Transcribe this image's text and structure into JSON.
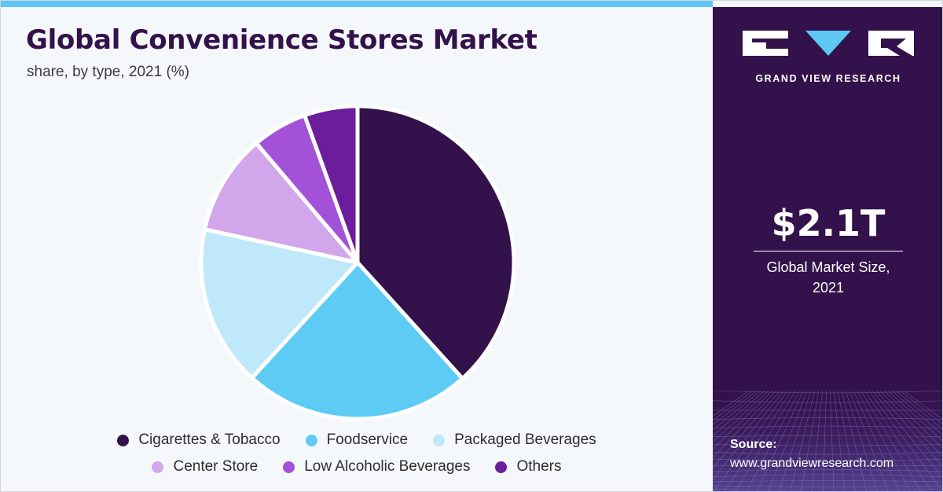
{
  "chart_data": {
    "type": "pie",
    "title": "Global Convenience Stores Market",
    "subtitle": "share, by type, 2021 (%)",
    "categories": [
      "Cigarettes & Tobacco",
      "Foodservice",
      "Packaged Beverages",
      "Center Store",
      "Low Alcoholic Beverages",
      "Others"
    ],
    "values": [
      38.3,
      23.5,
      16.6,
      10.4,
      5.7,
      5.5
    ],
    "colors": [
      "#33114a",
      "#5ecbf5",
      "#bfe9fa",
      "#d2a6ea",
      "#a352d8",
      "#6c1d9c"
    ],
    "legend_placement": "bottom"
  },
  "logo": {
    "brand_name": "GRAND VIEW RESEARCH"
  },
  "kpi": {
    "value": "$2.1T",
    "label_line1": "Global Market Size,",
    "label_line2": "2021"
  },
  "source": {
    "label": "Source:",
    "url": "www.grandviewresearch.com"
  }
}
